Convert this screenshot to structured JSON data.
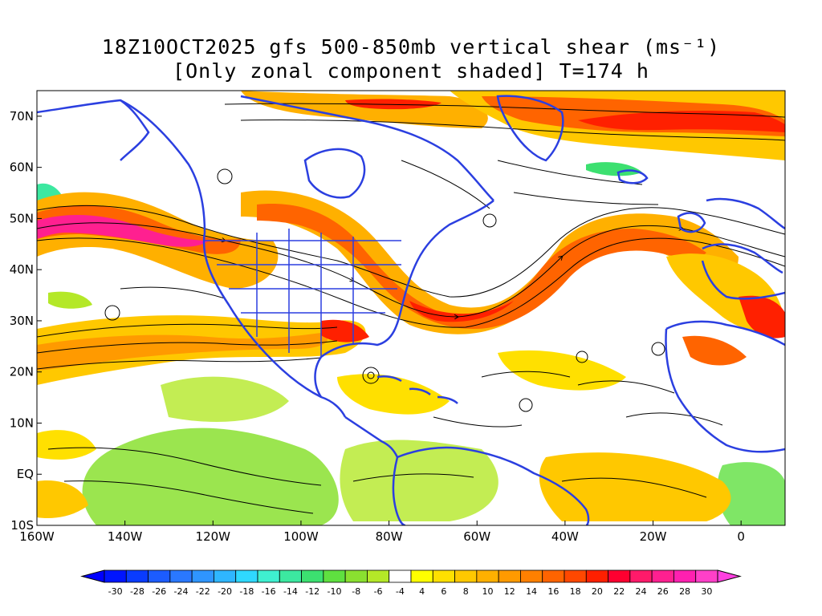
{
  "title": {
    "line1": "18Z10OCT2025 gfs 500-850mb vertical shear (ms⁻¹)",
    "line2": "[Only zonal component shaded] T=174 h"
  },
  "map": {
    "lat_labels": [
      "70N",
      "60N",
      "50N",
      "40N",
      "30N",
      "20N",
      "10N",
      "EQ",
      "10S"
    ],
    "lat_values": [
      70,
      60,
      50,
      40,
      30,
      20,
      10,
      0,
      -10
    ],
    "lon_labels": [
      "160W",
      "140W",
      "120W",
      "100W",
      "80W",
      "60W",
      "40W",
      "20W",
      "0"
    ],
    "lon_values": [
      -160,
      -140,
      -120,
      -100,
      -80,
      -60,
      -40,
      -20,
      0
    ],
    "extent": {
      "lon_min": -160,
      "lon_max": 10,
      "lat_min": -10,
      "lat_max": 75
    },
    "coastline_color": "#2b3fe0",
    "streamline_color": "#000000"
  },
  "colorbar": {
    "labels": [
      "-30",
      "-28",
      "-26",
      "-24",
      "-22",
      "-20",
      "-18",
      "-16",
      "-14",
      "-12",
      "-10",
      "-8",
      "-6",
      "-4",
      "4",
      "6",
      "8",
      "10",
      "12",
      "14",
      "16",
      "18",
      "20",
      "22",
      "24",
      "26",
      "28",
      "30"
    ],
    "colors": [
      "#0015ff",
      "#0a3cff",
      "#1c5cff",
      "#2a78ff",
      "#2f95ff",
      "#2fb6ff",
      "#2fd8ff",
      "#3ff0d0",
      "#3ce8a0",
      "#3ce070",
      "#5fe040",
      "#8ae030",
      "#b4e828",
      "#ffffff",
      "#ffff00",
      "#ffe000",
      "#ffc800",
      "#ffb000",
      "#ff9a00",
      "#ff8000",
      "#ff6400",
      "#ff4800",
      "#ff2000",
      "#ff0030",
      "#ff1a6a",
      "#ff2090",
      "#ff20b0",
      "#ff40c8"
    ],
    "low_arrow_color": "#0000ff",
    "high_arrow_color": "#ff40e0"
  }
}
